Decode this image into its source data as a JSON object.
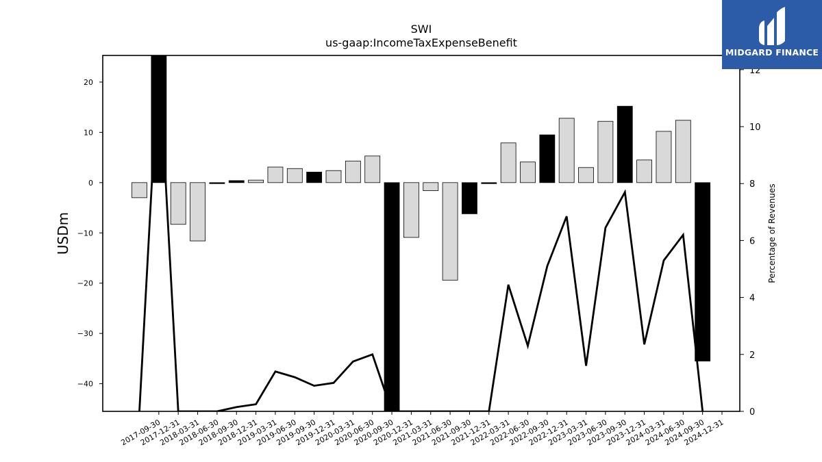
{
  "chart_data": {
    "type": "bar",
    "title": "SWI",
    "subtitle": "us-gaap:IncomeTaxExpenseBenefit",
    "ylabel": "USDm",
    "y2label": "Percentage of Revenues",
    "ylim": [
      -45.5,
      25.3
    ],
    "y2lim": [
      0,
      12.5
    ],
    "yticks": [
      20,
      10,
      0,
      -10,
      -20,
      -30,
      -40
    ],
    "y2ticks": [
      0,
      2,
      4,
      6,
      8,
      10,
      12
    ],
    "ytick_labels": [
      "20",
      "10",
      "0",
      "−10",
      "−20",
      "−30",
      "−40"
    ],
    "y2tick_labels": [
      "0",
      "2",
      "4",
      "6",
      "8",
      "10",
      "12"
    ],
    "categories": [
      "2017-09-30",
      "2017-12-31",
      "2018-03-31",
      "2018-06-30",
      "2018-09-30",
      "2018-12-31",
      "2019-03-31",
      "2019-06-30",
      "2019-09-30",
      "2019-12-31",
      "2020-03-31",
      "2020-06-30",
      "2020-09-30",
      "2020-12-31",
      "2021-03-31",
      "2021-06-30",
      "2021-09-30",
      "2021-12-31",
      "2022-03-31",
      "2022-06-30",
      "2022-09-30",
      "2022-12-31",
      "2023-03-31",
      "2023-06-30",
      "2023-09-30",
      "2023-12-31",
      "2024-03-31",
      "2024-06-30",
      "2024-09-30",
      "2024-12-31"
    ],
    "values": [
      -3.0,
      25.3,
      -8.3,
      -11.6,
      -0.2,
      0.4,
      0.5,
      3.1,
      2.8,
      2.1,
      2.4,
      4.3,
      5.3,
      -45.5,
      -10.9,
      -1.6,
      -19.4,
      -6.2,
      -0.2,
      7.9,
      4.1,
      9.5,
      12.8,
      3.0,
      12.2,
      15.2,
      4.5,
      10.2,
      12.4,
      -35.5
    ],
    "highlight": [
      false,
      true,
      false,
      false,
      true,
      true,
      false,
      false,
      false,
      true,
      false,
      false,
      false,
      true,
      false,
      false,
      false,
      true,
      true,
      false,
      false,
      true,
      false,
      false,
      false,
      true,
      false,
      false,
      false,
      true
    ],
    "line_series": {
      "name": "Percentage of Revenues",
      "values": [
        0,
        12.5,
        0,
        0,
        0,
        0.15,
        0.25,
        1.4,
        1.2,
        0.9,
        1.0,
        1.75,
        2.0,
        0,
        0,
        0,
        0,
        0,
        0,
        4.45,
        2.3,
        5.1,
        6.85,
        1.6,
        6.45,
        7.7,
        2.35,
        5.3,
        6.2,
        0
      ]
    },
    "colors": {
      "bar": "#d9d9d9",
      "highlight": "#000000",
      "edge": "#000000",
      "line": "#000000"
    },
    "grid": false,
    "legend": "none"
  },
  "logo": {
    "text": "MIDGARD FINANCE",
    "bg": "#2c5ba8",
    "icon": "midgard-logo-icon"
  }
}
